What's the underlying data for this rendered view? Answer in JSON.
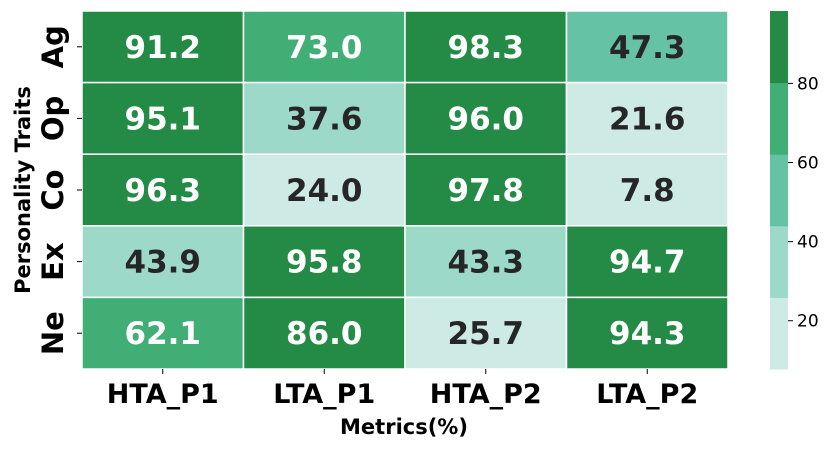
{
  "chart_data": {
    "type": "heatmap",
    "title": "",
    "xlabel": "Metrics(%)",
    "ylabel": "Personality Traits",
    "columns": [
      "HTA_P1",
      "LTA_P1",
      "HTA_P2",
      "LTA_P2"
    ],
    "rows": [
      "Ag",
      "Op",
      "Co",
      "Ex",
      "Ne"
    ],
    "values": [
      [
        91.2,
        73.0,
        98.3,
        47.3
      ],
      [
        95.1,
        37.6,
        96.0,
        21.6
      ],
      [
        96.3,
        24.0,
        97.8,
        7.8
      ],
      [
        43.9,
        95.8,
        43.3,
        94.7
      ],
      [
        62.1,
        86.0,
        25.7,
        94.3
      ]
    ],
    "colorbar": {
      "ticks": [
        20,
        40,
        60,
        80
      ],
      "range": [
        7.8,
        98.3
      ],
      "colors": [
        "#cdebe4",
        "#9dd9c8",
        "#66c2a4",
        "#41ae76",
        "#238b45"
      ]
    },
    "text_colors": {
      "dark": "#262626",
      "light": "#ffffff"
    }
  }
}
